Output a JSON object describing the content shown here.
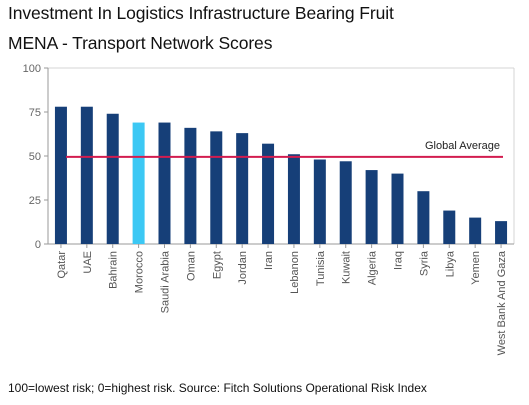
{
  "chart_data": {
    "type": "bar",
    "title": "Investment In Logistics Infrastructure Bearing Fruit",
    "subtitle": "MENA - Transport Network Scores",
    "categories": [
      "Qatar",
      "UAE",
      "Bahrain",
      "Morocco",
      "Saudi Arabia",
      "Oman",
      "Egypt",
      "Jordan",
      "Iran",
      "Lebanon",
      "Tunisia",
      "Kuwait",
      "Algeria",
      "Iraq",
      "Syria",
      "Libya",
      "Yemen",
      "West Bank And Gaza"
    ],
    "values": [
      78,
      78,
      74,
      69,
      69,
      66,
      64,
      63,
      57,
      51,
      48,
      47,
      42,
      40,
      30,
      19,
      15,
      13
    ],
    "highlight_category": "Morocco",
    "ylim": [
      0,
      100
    ],
    "yticks": [
      0,
      25,
      50,
      75,
      100
    ],
    "xlabel": "",
    "ylabel": "",
    "reference_line": {
      "label": "Global Average",
      "value": 49.5
    },
    "colors": {
      "bar": "#163f78",
      "highlight": "#3cc8f4",
      "reference": "#d21c4f",
      "axis": "#9a9a9a"
    },
    "grid": false,
    "legend": "none",
    "footnote": "100=lowest risk; 0=highest risk. Source: Fitch Solutions Operational Risk Index"
  }
}
